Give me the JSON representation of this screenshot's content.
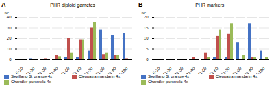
{
  "chart_data": [
    {
      "type": "bar",
      "title": "PHR diploid gametes",
      "annotations": [
        "A"
      ],
      "ylabel": "N°",
      "categories": [
        "0-10",
        "11-20",
        "21-30",
        "31-40",
        "41-50",
        "51-60",
        "61-70",
        "71-80",
        "81-90",
        "91-100"
      ],
      "series": [
        {
          "name": "Sevillano S. orange 4x",
          "color": "#4472c4",
          "values": [
            0,
            1,
            0,
            0,
            2,
            2,
            8,
            28,
            23,
            25
          ]
        },
        {
          "name": "Cleopatra mandarin 4x",
          "color": "#c0504d",
          "values": [
            0,
            0,
            1,
            4,
            20,
            19,
            30,
            5,
            4,
            1
          ]
        },
        {
          "name": "Chandler pummelo 4x",
          "color": "#9bbb59",
          "values": [
            0,
            0,
            0,
            3,
            6,
            19,
            35,
            6,
            4,
            0
          ]
        }
      ],
      "ylim": [
        0,
        40
      ],
      "yticks": [
        0,
        10,
        20,
        30,
        40
      ],
      "grid": true,
      "legend": "bottom"
    },
    {
      "type": "bar",
      "title": "PHR markers",
      "annotations": [
        "B"
      ],
      "ylabel": "N°",
      "categories": [
        "0-10",
        "11-20",
        "21-30",
        "31-40",
        "41-50",
        "51-60",
        "61-70",
        "71-80",
        "81-90",
        "91-100"
      ],
      "series": [
        {
          "name": "Sevillano S. orange 4x",
          "color": "#4472c4",
          "values": [
            0,
            0,
            0,
            0,
            0,
            1,
            1,
            8,
            17,
            4
          ]
        },
        {
          "name": "Cleopatra mandarin 4x",
          "color": "#c0504d",
          "values": [
            0,
            0,
            0,
            1,
            3,
            11,
            12,
            0,
            1,
            0
          ]
        },
        {
          "name": "Chandler pummelo 4x",
          "color": "#9bbb59",
          "values": [
            0,
            0,
            0,
            0,
            1,
            14,
            17,
            2,
            1,
            1
          ]
        }
      ],
      "ylim": [
        0,
        20
      ],
      "yticks": [
        0,
        5,
        10,
        15,
        20
      ],
      "grid": true,
      "legend": "bottom"
    }
  ]
}
